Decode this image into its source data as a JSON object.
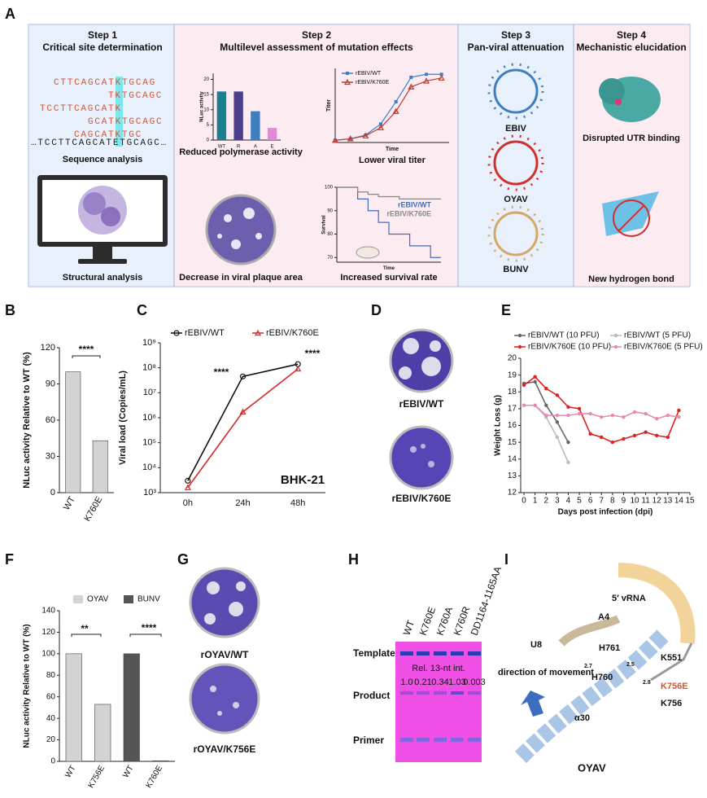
{
  "chart_data": [
    {
      "type": "bar",
      "ylabel": "NLuc activity",
      "categories": [
        "WT",
        "R",
        "A",
        "E"
      ],
      "series": [
        {
          "colors": [
            "#1a7f8e",
            "#4b3f8c",
            "#3f7fc0",
            "#e08ad6"
          ],
          "values": [
            16,
            16,
            9.5,
            4
          ]
        }
      ],
      "ylim": [
        0,
        22
      ],
      "yticks": [
        0,
        5,
        10,
        15,
        20
      ]
    },
    {
      "type": "line",
      "xlabel": "Time",
      "ylabel": "Titer",
      "x": [
        0,
        1,
        2,
        3,
        4,
        5,
        6,
        7
      ],
      "xlim": [
        0,
        7.5
      ],
      "ylim": [
        0,
        10
      ],
      "series": [
        {
          "name": "rEBIV/WT",
          "color": "#3a7fd0",
          "marker": "square",
          "values": [
            0.3,
            0.5,
            1,
            2.5,
            5.5,
            8.8,
            9.2,
            9.2
          ]
        },
        {
          "name": "rEBIV/K760E",
          "color": "#c0392b",
          "marker": "triangle",
          "values": [
            0.3,
            0.5,
            0.9,
            2,
            4.2,
            7.5,
            8.3,
            8.7
          ]
        }
      ]
    },
    {
      "type": "line",
      "step": true,
      "xlabel": "Time",
      "ylabel": "Survival",
      "x": [
        0,
        1,
        2,
        3,
        4,
        5,
        6,
        7,
        8,
        9,
        10
      ],
      "xlim": [
        0,
        10
      ],
      "ylim": [
        68,
        100
      ],
      "yticks": [
        70,
        80,
        90,
        100
      ],
      "series": [
        {
          "name": "rEBIV/WT",
          "color": "#3a6fc0",
          "values": [
            100,
            100,
            95,
            90,
            85,
            80,
            80,
            75,
            75,
            70,
            70
          ]
        },
        {
          "name": "rEBIV/K760E",
          "color": "#888888",
          "values": [
            100,
            100,
            98,
            97,
            96,
            96,
            95,
            95,
            95,
            95,
            95
          ]
        }
      ]
    },
    {
      "type": "bar",
      "ylabel": "NLuc activity Relative to WT (%)",
      "categories": [
        "WT",
        "K760E"
      ],
      "series": [
        {
          "color": "#d3d3d3",
          "values": [
            100,
            43
          ]
        }
      ],
      "ylim": [
        0,
        120
      ],
      "yticks": [
        0,
        30,
        60,
        90,
        120
      ],
      "annotations": [
        "****"
      ]
    },
    {
      "type": "line",
      "log_y": true,
      "ylabel": "Viral load (Copies/mL)",
      "categories": [
        "0h",
        "24h",
        "48h"
      ],
      "series": [
        {
          "name": "rEBIV/WT",
          "color": "#111111",
          "marker": "circle",
          "values": [
            3000,
            45000000,
            140000000
          ]
        },
        {
          "name": "rEBIV/K760E",
          "color": "#d42a2a",
          "marker": "triangle",
          "values": [
            1600,
            1700000,
            90000000
          ]
        }
      ],
      "ylim": [
        1000,
        1000000000
      ],
      "yticks": [
        {
          "value": 1000,
          "label": "10³"
        },
        {
          "value": 10000,
          "label": "10⁴"
        },
        {
          "value": 100000,
          "label": "10⁵"
        },
        {
          "value": 1000000,
          "label": "10⁶"
        },
        {
          "value": 10000000,
          "label": "10⁷"
        },
        {
          "value": 100000000,
          "label": "10⁸"
        },
        {
          "value": 1000000000,
          "label": "10⁹"
        }
      ],
      "annotations": [
        "****",
        "****",
        "BHK-21"
      ]
    },
    {
      "type": "line",
      "xlabel": "Days post infection (dpi)",
      "ylabel": "Weight Loss (g)",
      "x": [
        0,
        1,
        2,
        3,
        4,
        5,
        6,
        7,
        8,
        9,
        10,
        11,
        12,
        13,
        14
      ],
      "xlim": [
        -0.3,
        15
      ],
      "xticks": [
        0,
        1,
        2,
        3,
        4,
        5,
        6,
        7,
        8,
        9,
        10,
        11,
        12,
        13,
        14,
        15
      ],
      "ylim": [
        12,
        20
      ],
      "yticks": [
        12,
        13,
        14,
        15,
        16,
        17,
        18,
        19,
        20
      ],
      "series": [
        {
          "name": "rEBIV/WT (10 PFU)",
          "color": "#666666",
          "marker": "dot",
          "values": [
            18.5,
            18.6,
            17.2,
            16.2,
            15.0,
            null,
            null,
            null,
            null,
            null,
            null,
            null,
            null,
            null,
            null
          ]
        },
        {
          "name": "rEBIV/WT (5 PFU)",
          "color": "#bbbbbb",
          "marker": "dot",
          "values": [
            17.2,
            17.2,
            16.5,
            15.3,
            13.8,
            null,
            null,
            null,
            null,
            null,
            null,
            null,
            null,
            null,
            null
          ]
        },
        {
          "name": "rEBIV/K760E (10 PFU)",
          "color": "#e02020",
          "marker": "dot",
          "values": [
            18.4,
            18.9,
            18.2,
            17.8,
            17.1,
            17.0,
            15.5,
            15.3,
            15.0,
            15.2,
            15.4,
            15.6,
            15.4,
            15.3,
            16.9
          ]
        },
        {
          "name": "rEBIV/K760E (5 PFU)",
          "color": "#e888b4",
          "marker": "dot",
          "values": [
            17.2,
            17.2,
            16.6,
            16.6,
            16.6,
            16.7,
            16.7,
            16.5,
            16.6,
            16.5,
            16.8,
            16.7,
            16.4,
            16.6,
            16.5
          ]
        }
      ]
    },
    {
      "type": "bar",
      "ylabel": "NLuc activity Relative to WT (%)",
      "categories": [
        "WT",
        "K756E",
        "WT",
        "K760E"
      ],
      "series": [
        {
          "name": "OYAV",
          "color": "#d3d3d3",
          "values": [
            100,
            53,
            null,
            null
          ]
        },
        {
          "name": "BUNV",
          "color": "#555555",
          "values": [
            null,
            null,
            100,
            0.5
          ]
        }
      ],
      "ylim": [
        0,
        140
      ],
      "yticks": [
        0,
        20,
        40,
        60,
        80,
        100,
        120,
        140
      ],
      "annotations": [
        "**",
        "****"
      ]
    }
  ],
  "figure": {
    "panel_letters": [
      "A",
      "B",
      "C",
      "D",
      "E",
      "F",
      "G",
      "H",
      "I"
    ],
    "steps": [
      {
        "heading": "Step 1",
        "title": "Critical site determination"
      },
      {
        "heading": "Step 2",
        "title": "Multilevel assessment of mutation effects"
      },
      {
        "heading": "Step 3",
        "title": "Pan-viral attenuation"
      },
      {
        "heading": "Step 4",
        "title": "Mechanistic elucidation"
      }
    ],
    "sequences": [
      "CTTCAGCATKTGCAG",
      "TKTGCAGC",
      "TCCTTCAGCATK",
      "GCATKTGCAGC",
      "CAGCATKTGC",
      "…TCCTTCAGCATETGCAGC…"
    ],
    "captions": [
      "Sequence analysis",
      "Structural analysis",
      "Reduced polymerase activity",
      "Lower viral titer",
      "Decrease in viral plaque area",
      "Increased survival rate",
      "EBIV",
      "OYAV",
      "BUNV",
      "Disrupted UTR binding",
      "New hydrogen bond"
    ],
    "panel_d": [
      "rEBIV/WT",
      "rEBIV/K760E"
    ],
    "panel_g": [
      "rOYAV/WT",
      "rOYAV/K756E"
    ],
    "panel_h": {
      "lanes": [
        "WT",
        "K760E",
        "K760A",
        "K760R",
        "DD1164-1165AA"
      ],
      "rows": [
        "Template",
        "Product",
        "Primer"
      ],
      "note": "Rel. 13-nt int.",
      "intensities": [
        "1.0",
        "0.21",
        "0.34",
        "1.03",
        "0.003"
      ]
    },
    "panel_i": [
      "5′ vRNA",
      "A4",
      "U8",
      "H761",
      "H760",
      "K551",
      "K756E",
      "K756",
      "α30",
      "OYAV",
      "direction of movement",
      "2.7",
      "2.5",
      "2.8"
    ]
  }
}
